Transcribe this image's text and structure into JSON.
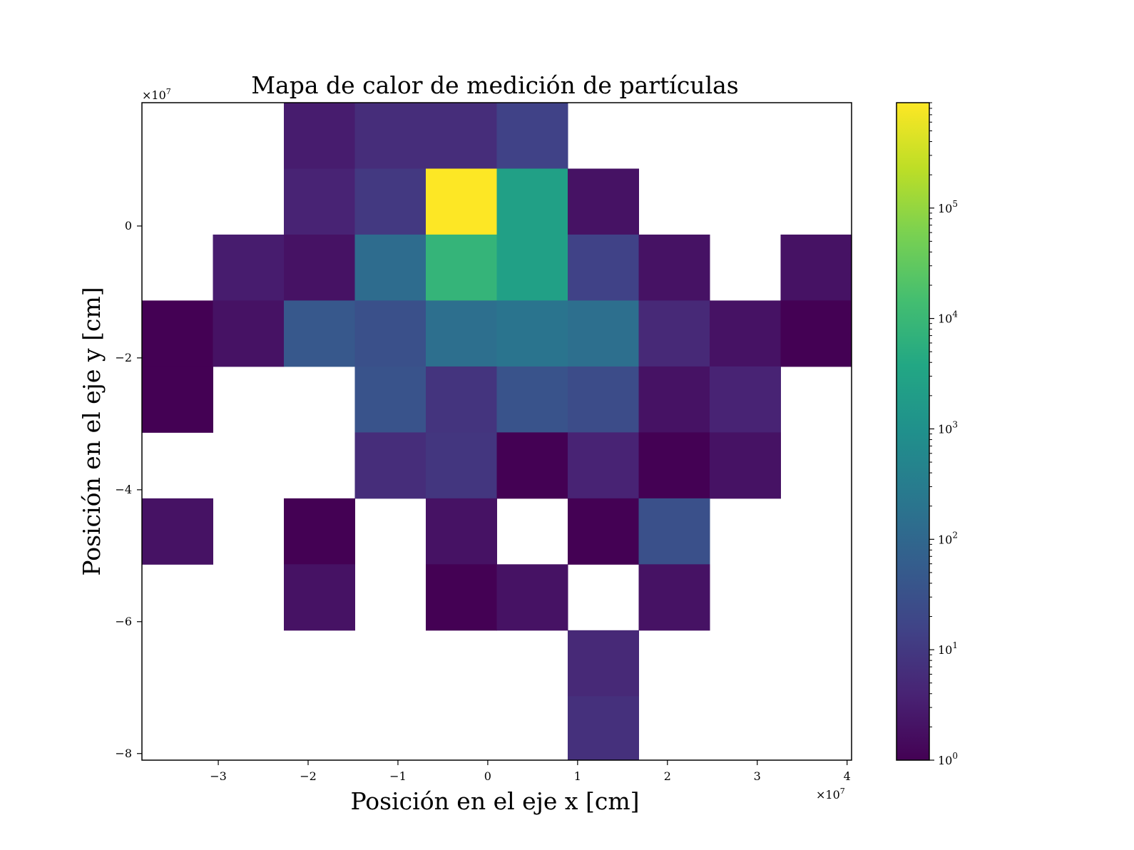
{
  "chart_data": {
    "type": "heatmap",
    "title": "Mapa de calor de medición de partículas",
    "xlabel": "Posición en el eje x [cm]",
    "ylabel": "Posición en el eje y [cm]",
    "x_offset_label": "×10",
    "x_offset_exp": "7",
    "y_offset_label": "×10",
    "y_offset_exp": "7",
    "xlim": [
      -3.85,
      4.05
    ],
    "ylim": [
      -8.1,
      1.87
    ],
    "x_edges": [
      -3.85,
      -3.06,
      -2.27,
      -1.48,
      -0.69,
      0.1,
      0.89,
      1.68,
      2.47,
      3.26,
      4.05
    ],
    "y_edges": [
      1.87,
      0.87,
      -0.13,
      -1.13,
      -2.13,
      -3.13,
      -4.13,
      -5.13,
      -6.13,
      -7.13,
      -8.13
    ],
    "x_ticks": [
      -3,
      -2,
      -1,
      0,
      1,
      2,
      3,
      4
    ],
    "x_tick_labels": [
      "−3",
      "−2",
      "−1",
      "0",
      "1",
      "2",
      "3",
      "4"
    ],
    "y_ticks": [
      0,
      -2,
      -4,
      -6,
      -8
    ],
    "y_tick_labels": [
      "0",
      "−2",
      "−4",
      "−6",
      "−8"
    ],
    "values": [
      [
        null,
        null,
        3,
        6,
        6,
        15,
        null,
        null,
        null,
        null
      ],
      [
        null,
        null,
        4,
        10,
        900000,
        2500,
        2,
        null,
        null,
        null
      ],
      [
        null,
        3,
        2,
        130,
        8000,
        2500,
        15,
        2,
        null,
        2
      ],
      [
        1,
        2,
        45,
        30,
        150,
        200,
        150,
        5,
        2,
        1
      ],
      [
        1,
        null,
        null,
        35,
        8,
        35,
        25,
        2,
        4,
        null
      ],
      [
        null,
        null,
        null,
        6,
        9,
        1,
        4,
        1,
        2,
        null
      ],
      [
        2,
        null,
        1,
        null,
        2,
        null,
        1,
        30,
        null,
        null
      ],
      [
        null,
        null,
        2,
        null,
        1,
        2,
        null,
        2,
        null,
        null
      ],
      [
        null,
        null,
        null,
        null,
        null,
        null,
        5,
        null,
        null,
        null
      ],
      [
        null,
        null,
        null,
        null,
        null,
        null,
        7,
        null,
        null,
        null
      ]
    ],
    "colorbar": {
      "scale": "log",
      "colormap": "viridis",
      "range": [
        1,
        900000
      ],
      "ticks": [
        1,
        10,
        100,
        1000,
        10000,
        100000
      ],
      "tick_base": "10",
      "tick_exponents": [
        "0",
        "1",
        "2",
        "3",
        "4",
        "5"
      ]
    },
    "grid": false
  }
}
